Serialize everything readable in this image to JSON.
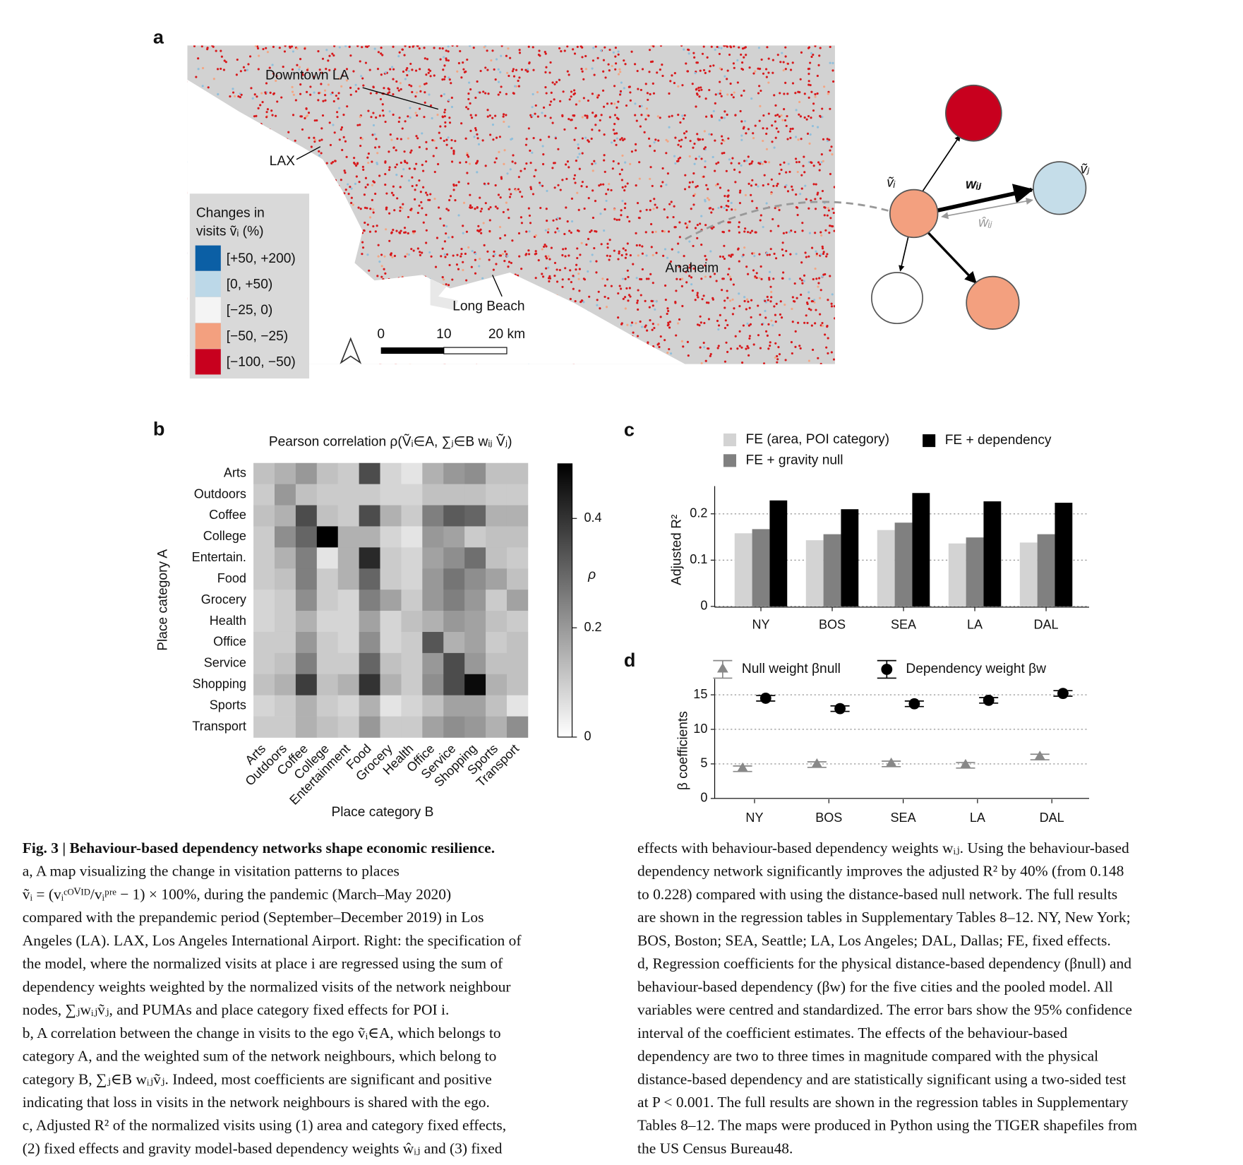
{
  "panel_labels": [
    "a",
    "b",
    "c",
    "d"
  ],
  "map": {
    "places": [
      "Downtown LA",
      "LAX",
      "Long Beach",
      "Anaheim"
    ],
    "legend_title": [
      "Changes in",
      "visits ṽᵢ (%)"
    ],
    "legend": [
      {
        "label": "[+50, +200)",
        "color": "#0b5fa5"
      },
      {
        "label": "[0, +50)",
        "color": "#bcd8e8"
      },
      {
        "label": "[−25, 0)",
        "color": "#f4f4f4"
      },
      {
        "label": "[−50, −25)",
        "color": "#f3a07f"
      },
      {
        "label": "[−100, −50)",
        "color": "#c8001e"
      }
    ],
    "scale": [
      "0",
      "10",
      "20 km"
    ]
  },
  "diagram": {
    "labels": [
      "ṽᵢ",
      "wᵢⱼ",
      "ŵᵢⱼ",
      "ṽⱼ"
    ]
  },
  "chart_data": [
    {
      "type": "heatmap",
      "title": "Pearson correlation ρ(Ṽᵢ∈A, ∑ⱼ∈B wᵢⱼ Ṽⱼ)",
      "xlabel": "Place category B",
      "ylabel": "Place category A",
      "zlabel": "ρ",
      "x_categories": [
        "Arts",
        "Outdoors",
        "Coffee",
        "College",
        "Entertainment",
        "Food",
        "Grocery",
        "Health",
        "Office",
        "Service",
        "Shopping",
        "Sports",
        "Transport"
      ],
      "y_categories": [
        "Arts",
        "Outdoors",
        "Coffee",
        "College",
        "Entertain.",
        "Food",
        "Grocery",
        "Health",
        "Office",
        "Service",
        "Shopping",
        "Sports",
        "Transport"
      ],
      "values": [
        [
          0.12,
          0.15,
          0.2,
          0.12,
          0.1,
          0.35,
          0.08,
          0.05,
          0.15,
          0.2,
          0.22,
          0.12,
          0.12
        ],
        [
          0.1,
          0.2,
          0.12,
          0.1,
          0.1,
          0.1,
          0.08,
          0.08,
          0.12,
          0.12,
          0.12,
          0.1,
          0.1
        ],
        [
          0.12,
          0.15,
          0.35,
          0.12,
          0.1,
          0.35,
          0.15,
          0.1,
          0.25,
          0.32,
          0.3,
          0.15,
          0.15
        ],
        [
          0.1,
          0.22,
          0.3,
          0.5,
          0.15,
          0.15,
          0.08,
          0.05,
          0.2,
          0.18,
          0.1,
          0.12,
          0.12
        ],
        [
          0.1,
          0.15,
          0.25,
          0.05,
          0.15,
          0.42,
          0.1,
          0.08,
          0.18,
          0.22,
          0.28,
          0.12,
          0.1
        ],
        [
          0.1,
          0.12,
          0.25,
          0.1,
          0.15,
          0.3,
          0.1,
          0.08,
          0.2,
          0.27,
          0.22,
          0.18,
          0.12
        ],
        [
          0.08,
          0.1,
          0.22,
          0.1,
          0.08,
          0.25,
          0.18,
          0.1,
          0.2,
          0.25,
          0.2,
          0.1,
          0.18
        ],
        [
          0.08,
          0.1,
          0.15,
          0.08,
          0.08,
          0.18,
          0.08,
          0.12,
          0.15,
          0.2,
          0.18,
          0.12,
          0.1
        ],
        [
          0.1,
          0.1,
          0.2,
          0.1,
          0.08,
          0.22,
          0.08,
          0.1,
          0.33,
          0.15,
          0.18,
          0.1,
          0.12
        ],
        [
          0.1,
          0.12,
          0.25,
          0.1,
          0.1,
          0.3,
          0.12,
          0.1,
          0.2,
          0.35,
          0.2,
          0.12,
          0.12
        ],
        [
          0.12,
          0.15,
          0.38,
          0.12,
          0.15,
          0.4,
          0.15,
          0.1,
          0.22,
          0.35,
          0.48,
          0.15,
          0.12
        ],
        [
          0.08,
          0.1,
          0.15,
          0.1,
          0.08,
          0.15,
          0.05,
          0.08,
          0.12,
          0.18,
          0.18,
          0.12,
          0.05
        ],
        [
          0.1,
          0.1,
          0.15,
          0.12,
          0.1,
          0.2,
          0.1,
          0.1,
          0.18,
          0.22,
          0.2,
          0.15,
          0.22
        ]
      ],
      "zlim": [
        0,
        0.5
      ],
      "zticks": [
        0,
        0.2,
        0.4
      ]
    },
    {
      "type": "bar",
      "ylabel": "Adjusted R²",
      "categories": [
        "NY",
        "BOS",
        "SEA",
        "LA",
        "DAL"
      ],
      "series": [
        {
          "name": "FE (area, POI category)",
          "color": "#d3d3d3",
          "values": [
            0.158,
            0.143,
            0.165,
            0.136,
            0.138
          ]
        },
        {
          "name": "FE + gravity null",
          "color": "#808080",
          "values": [
            0.167,
            0.156,
            0.181,
            0.149,
            0.156
          ]
        },
        {
          "name": "FE + dependency",
          "color": "#000000",
          "values": [
            0.229,
            0.21,
            0.245,
            0.227,
            0.224
          ]
        }
      ],
      "ylim": [
        0,
        0.26
      ],
      "yticks": [
        0,
        0.1,
        0.2
      ],
      "grid": true
    },
    {
      "type": "errorbar",
      "ylabel": "β coefficients",
      "categories": [
        "NY",
        "BOS",
        "SEA",
        "LA",
        "DAL"
      ],
      "series": [
        {
          "name": "Null weight βnull",
          "color": "#888888",
          "marker": "triangle",
          "values": [
            4.3,
            4.9,
            5.0,
            4.8,
            6.0
          ],
          "errors": [
            0.4,
            0.4,
            0.4,
            0.4,
            0.4
          ]
        },
        {
          "name": "Dependency weight βw",
          "color": "#000000",
          "marker": "circle",
          "values": [
            14.5,
            13.0,
            13.7,
            14.2,
            15.2
          ],
          "errors": [
            0.4,
            0.4,
            0.4,
            0.4,
            0.4
          ]
        }
      ],
      "ylim": [
        0,
        17.3
      ],
      "yticks": [
        0,
        5,
        10,
        15
      ],
      "grid": true
    }
  ],
  "caption": {
    "left": [
      "Fig. 3 | Behaviour-based dependency networks shape economic resilience.",
      "a, A map visualizing the change in visitation patterns to places",
      "ṽᵢ = (vᵢᶜᴼⱽᴵᴰ/vᵢᵖʳᵉ − 1) × 100%, during the pandemic (March–May 2020)",
      "compared with the prepandemic period (September–December 2019) in Los",
      "Angeles (LA). LAX, Los Angeles International Airport. Right: the specification of",
      "the model, where the normalized visits at place i are regressed using the sum of",
      "dependency weights weighted by the normalized visits of the network neighbour",
      "nodes, ∑ⱼwᵢⱼṽⱼ, and PUMAs and place category fixed effects for POI i.",
      "b, A correlation between the change in visits to the ego ṽᵢ∈A, which belongs to",
      "category A, and the weighted sum of the network neighbours, which belong to",
      "category B, ∑ⱼ∈B wᵢⱼṽⱼ. Indeed, most coefficients are significant and positive",
      "indicating that loss in visits in the network neighbours is shared with the ego.",
      "c, Adjusted R² of the normalized visits using (1) area and category fixed effects,",
      "(2) fixed effects and gravity model-based dependency weights ŵᵢⱼ and (3) fixed"
    ],
    "right": [
      "effects with behaviour-based dependency weights wᵢⱼ. Using the behaviour-based",
      "dependency network significantly improves the adjusted R² by 40% (from 0.148",
      "to 0.228) compared with using the distance-based null network. The full results",
      "are shown in the regression tables in Supplementary Tables 8–12. NY, New York;",
      "BOS, Boston; SEA, Seattle; LA, Los Angeles; DAL, Dallas; FE, fixed effects.",
      "d, Regression coefficients for the physical distance-based dependency (βnull) and",
      "behaviour-based dependency (βw) for the five cities and the pooled model. All",
      "variables were centred and standardized. The error bars show the 95% confidence",
      "interval of the coefficient estimates. The effects of the behaviour-based",
      "dependency are two to three times in magnitude compared with the physical",
      "distance-based dependency and are statistically significant using a two-sided test",
      "at P < 0.001. The full results are shown in the regression tables in Supplementary",
      "Tables 8–12. The maps were produced in Python using the TIGER shapefiles from",
      "the US Census Bureau48."
    ]
  }
}
